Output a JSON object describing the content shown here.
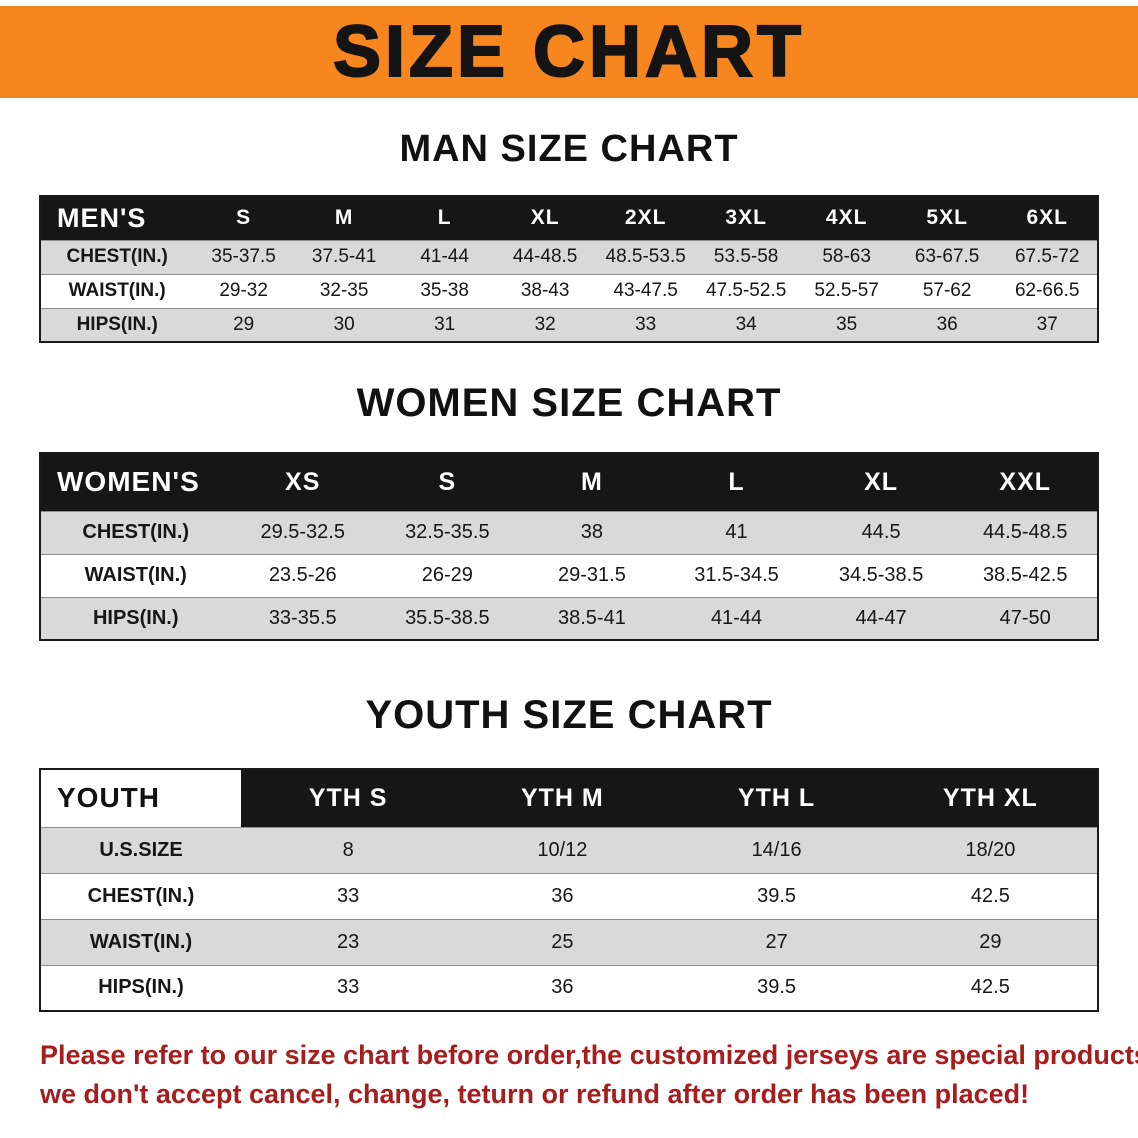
{
  "banner": {
    "title": "SIZE CHART"
  },
  "colors": {
    "banner_bg": "#f6861d",
    "header_bg": "#161616",
    "row_alt": "#d9d9d9",
    "footer_text": "#a51d1d"
  },
  "men": {
    "heading": "MAN SIZE CHART",
    "table": {
      "columns": [
        "MEN'S",
        "S",
        "M",
        "L",
        "XL",
        "2XL",
        "3XL",
        "4XL",
        "5XL",
        "6XL"
      ],
      "rows": [
        [
          "CHEST(IN.)",
          "35-37.5",
          "37.5-41",
          "41-44",
          "44-48.5",
          "48.5-53.5",
          "53.5-58",
          "58-63",
          "63-67.5",
          "67.5-72"
        ],
        [
          "WAIST(IN.)",
          "29-32",
          "32-35",
          "35-38",
          "38-43",
          "43-47.5",
          "47.5-52.5",
          "52.5-57",
          "57-62",
          "62-66.5"
        ],
        [
          "HIPS(IN.)",
          "29",
          "30",
          "31",
          "32",
          "33",
          "34",
          "35",
          "36",
          "37"
        ]
      ]
    }
  },
  "women": {
    "heading": "WOMEN SIZE CHART",
    "table": {
      "columns": [
        "WOMEN'S",
        "XS",
        "S",
        "M",
        "L",
        "XL",
        "XXL"
      ],
      "rows": [
        [
          "CHEST(IN.)",
          "29.5-32.5",
          "32.5-35.5",
          "38",
          "41",
          "44.5",
          "44.5-48.5"
        ],
        [
          "WAIST(IN.)",
          "23.5-26",
          "26-29",
          "29-31.5",
          "31.5-34.5",
          "34.5-38.5",
          "38.5-42.5"
        ],
        [
          "HIPS(IN.)",
          "33-35.5",
          "35.5-38.5",
          "38.5-41",
          "41-44",
          "44-47",
          "47-50"
        ]
      ]
    }
  },
  "youth": {
    "heading": "YOUTH SIZE CHART",
    "table": {
      "columns": [
        "YOUTH",
        "YTH S",
        "YTH M",
        "YTH L",
        "YTH XL"
      ],
      "rows": [
        [
          "U.S.SIZE",
          "8",
          "10/12",
          "14/16",
          "18/20"
        ],
        [
          "CHEST(IN.)",
          "33",
          "36",
          "39.5",
          "42.5"
        ],
        [
          "WAIST(IN.)",
          "23",
          "25",
          "27",
          "29"
        ],
        [
          "HIPS(IN.)",
          "33",
          "36",
          "39.5",
          "42.5"
        ]
      ]
    }
  },
  "footer": {
    "line1": "Please refer to our size chart before order,the customized jerseys are special products,",
    "line2": "we don't accept cancel, change, teturn or refund after order has been placed!"
  }
}
